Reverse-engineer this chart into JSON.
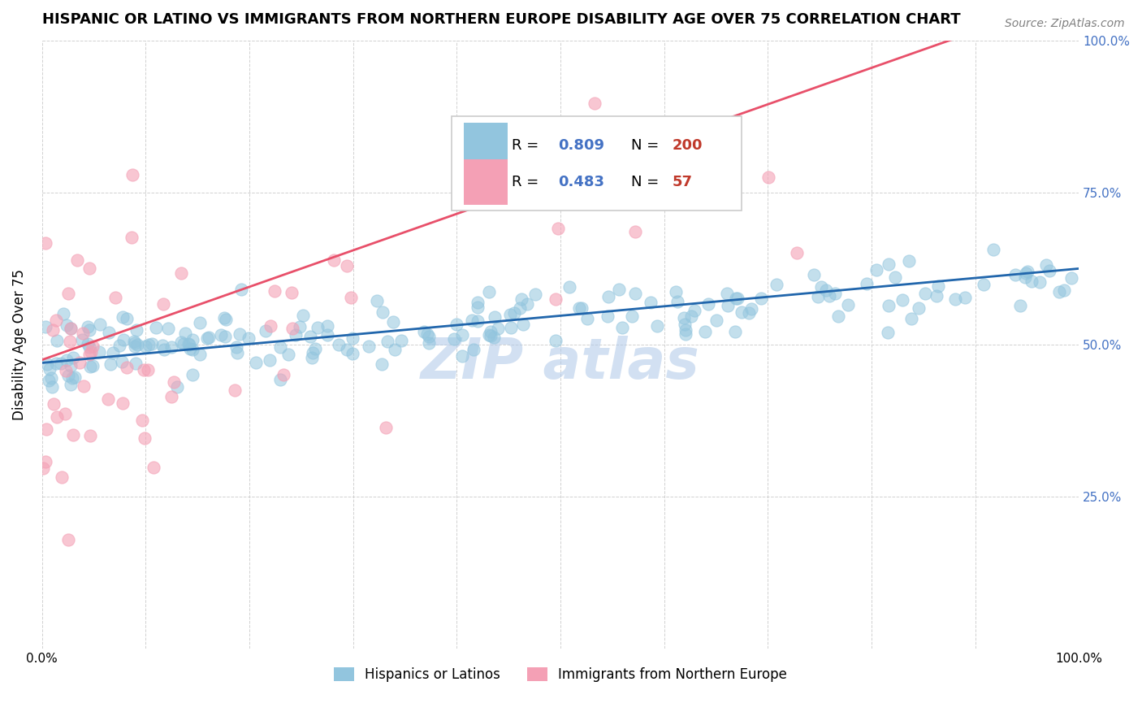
{
  "title": "HISPANIC OR LATINO VS IMMIGRANTS FROM NORTHERN EUROPE DISABILITY AGE OVER 75 CORRELATION CHART",
  "source": "Source: ZipAtlas.com",
  "ylabel": "Disability Age Over 75",
  "xlabel": "",
  "xlim": [
    0.0,
    100.0
  ],
  "ylim": [
    0.0,
    100.0
  ],
  "blue_R": 0.809,
  "blue_N": 200,
  "pink_R": 0.483,
  "pink_N": 57,
  "blue_color": "#92c5de",
  "pink_color": "#f4a0b5",
  "blue_line_color": "#2166ac",
  "pink_line_color": "#e8506a",
  "legend_label_blue": "Hispanics or Latinos",
  "legend_label_pink": "Immigrants from Northern Europe",
  "watermark": "ZIP atlas",
  "watermark_color": "#aec8e8",
  "title_fontsize": 13,
  "source_fontsize": 10,
  "blue_slope": 0.155,
  "blue_intercept": 47.0,
  "pink_slope": 0.6,
  "pink_intercept": 47.5,
  "R_N_color": "#4472c4",
  "N_value_color": "#c0392b",
  "right_tick_color": "#4472c4"
}
